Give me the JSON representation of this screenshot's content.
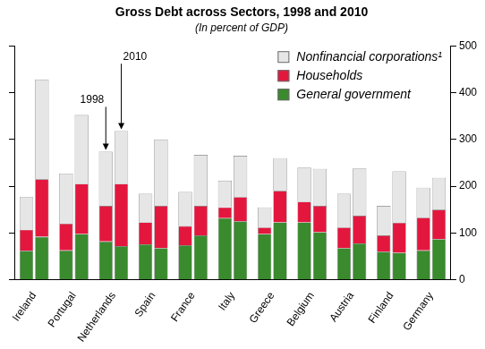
{
  "chart_data": {
    "type": "bar",
    "title": "Gross Debt across Sectors, 1998 and 2010",
    "subtitle": "(In percent of GDP)",
    "categories": [
      "Ireland",
      "Portugal",
      "Netherlands",
      "Spain",
      "France",
      "Italy",
      "Greece",
      "Belgium",
      "Austria",
      "Finland",
      "Germany"
    ],
    "groups": [
      "1998",
      "2010"
    ],
    "annotate_category": "Netherlands",
    "series": [
      {
        "name": "General government",
        "color": "#3a8a2e",
        "values": [
          [
            62,
            63,
            82,
            76,
            74,
            132,
            98,
            123,
            68,
            60,
            63
          ],
          [
            92,
            98,
            72,
            68,
            95,
            125,
            123,
            102,
            78,
            58,
            87
          ]
        ]
      },
      {
        "name": "Households",
        "color": "#e3173e",
        "values": [
          [
            45,
            57,
            76,
            47,
            41,
            23,
            14,
            44,
            44,
            35,
            70
          ],
          [
            123,
            107,
            133,
            90,
            63,
            52,
            67,
            56,
            59,
            64,
            63
          ]
        ]
      },
      {
        "name": "Nonfinancial corporations¹",
        "color": "#e6e6e6",
        "values": [
          [
            70,
            107,
            116,
            61,
            73,
            57,
            43,
            73,
            72,
            63,
            64
          ],
          [
            213,
            147,
            113,
            142,
            109,
            88,
            70,
            79,
            101,
            110,
            68
          ]
        ]
      }
    ],
    "stacked": true,
    "legend": "upper right",
    "grid": false,
    "ylim": [
      0,
      500
    ],
    "yticks": [
      0,
      100,
      200,
      300,
      400,
      500
    ]
  }
}
